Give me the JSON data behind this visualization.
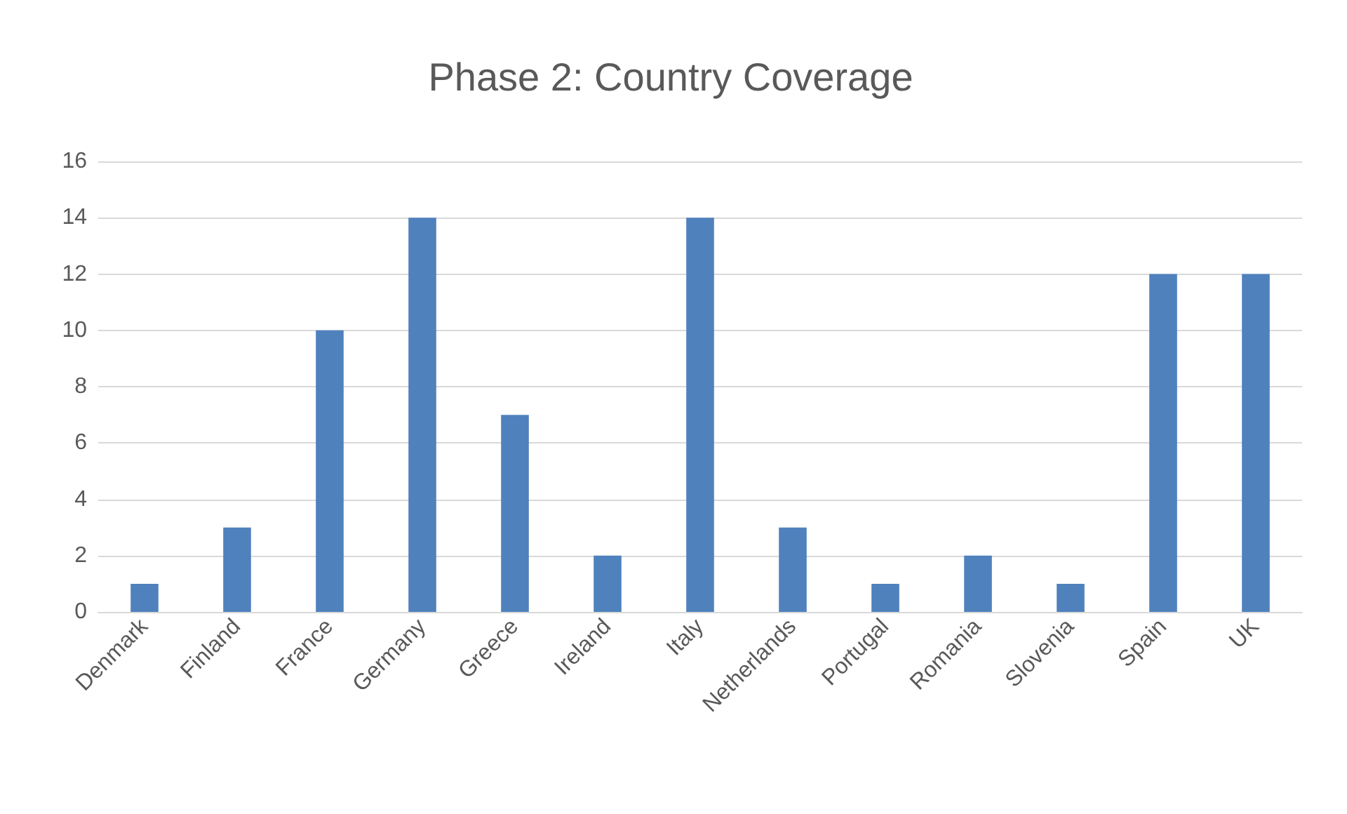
{
  "chart_data": {
    "type": "bar",
    "title": "Phase 2: Country Coverage",
    "categories": [
      "Denmark",
      "Finland",
      "France",
      "Germany",
      "Greece",
      "Ireland",
      "Italy",
      "Netherlands",
      "Portugal",
      "Romania",
      "Slovenia",
      "Spain",
      "UK"
    ],
    "values": [
      1,
      3,
      10,
      14,
      7,
      2,
      14,
      3,
      1,
      2,
      1,
      12,
      12
    ],
    "color": "#4f81bd",
    "ylim": [
      0,
      16
    ],
    "yticks": [
      0,
      2,
      4,
      6,
      8,
      10,
      12,
      14,
      16
    ],
    "grid": "y"
  }
}
